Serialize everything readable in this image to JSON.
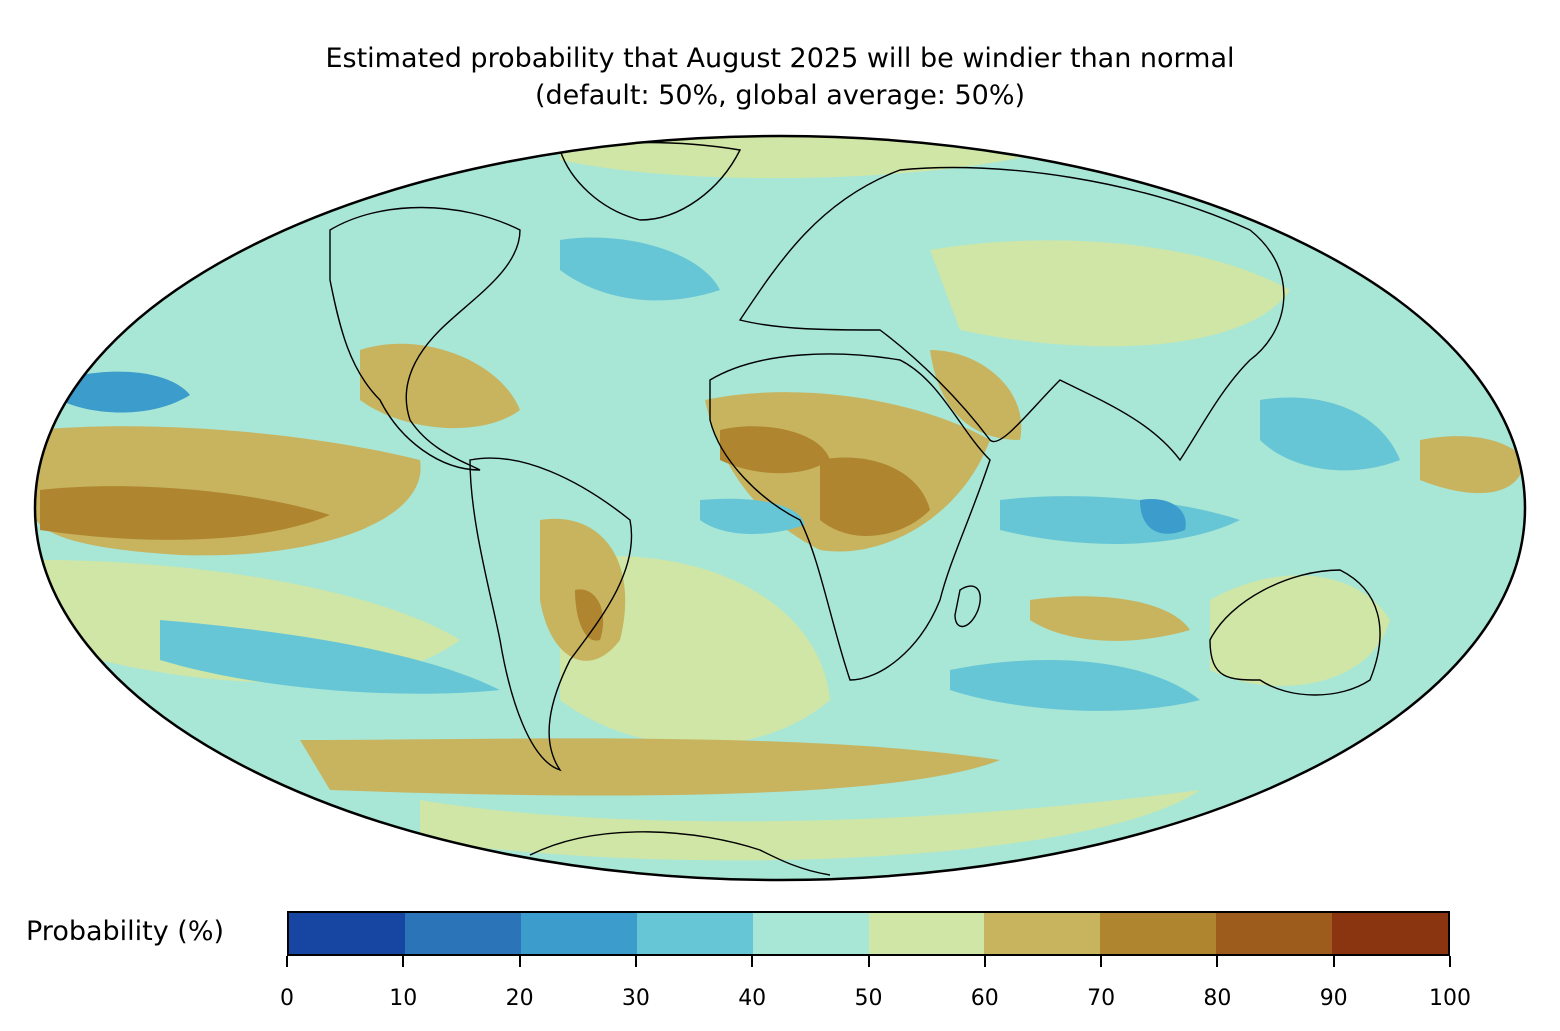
{
  "title": {
    "line1": "Estimated probability that August 2025 will be windier than normal",
    "line2": "(default: 50%, global average: 50%)"
  },
  "map": {
    "projection": "Mollweide",
    "background_class_color": "#a8e6d6",
    "regions": [
      {
        "name": "east-pacific-equatorial-band",
        "class": "70-80"
      },
      {
        "name": "central-africa",
        "class": "70-80"
      },
      {
        "name": "sahel",
        "class": "70-80"
      },
      {
        "name": "eastern-brazil",
        "class": "70-80"
      },
      {
        "name": "mexico-gulf",
        "class": "60-70"
      },
      {
        "name": "arabian-peninsula",
        "class": "60-70"
      },
      {
        "name": "southern-ocean-band",
        "class": "60-70"
      },
      {
        "name": "central-asia",
        "class": "50-60"
      },
      {
        "name": "australia",
        "class": "50-60"
      },
      {
        "name": "south-atlantic",
        "class": "50-60"
      },
      {
        "name": "indian-ocean-equatorial",
        "class": "30-40"
      },
      {
        "name": "north-pacific-west",
        "class": "20-30"
      },
      {
        "name": "maritime-continent",
        "class": "30-40"
      },
      {
        "name": "south-pacific-band",
        "class": "30-40"
      },
      {
        "name": "north-atlantic",
        "class": "30-40"
      }
    ]
  },
  "legend": {
    "label": "Probability (%)",
    "colors": [
      "#1746a2",
      "#2a74b7",
      "#3c9ccb",
      "#67c6d6",
      "#a8e6d6",
      "#d0e6a6",
      "#c8b45f",
      "#b08530",
      "#9e5c1c",
      "#8a3410"
    ],
    "ticks": [
      "0",
      "10",
      "20",
      "30",
      "40",
      "50",
      "60",
      "70",
      "80",
      "90",
      "100"
    ]
  }
}
